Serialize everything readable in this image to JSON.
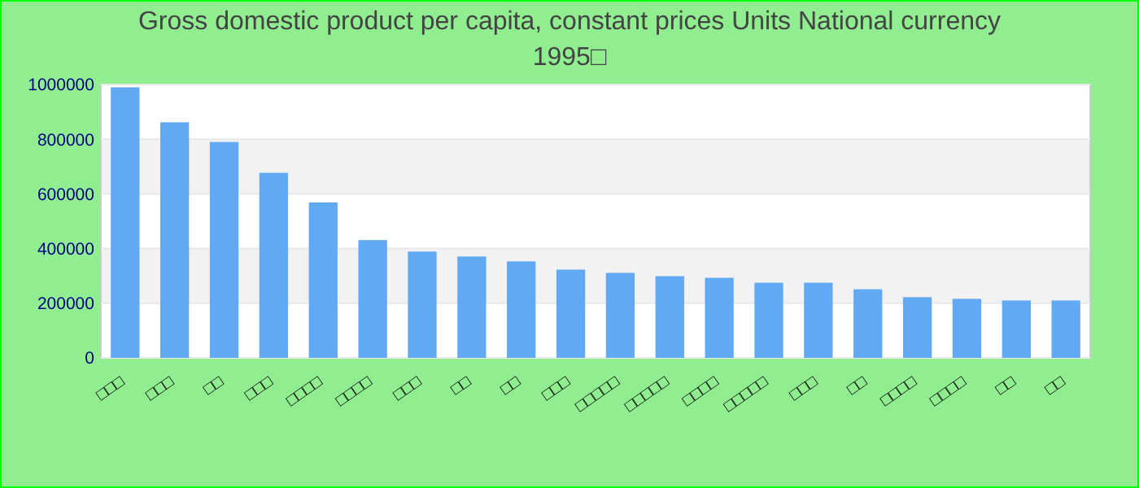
{
  "chart_data": {
    "type": "bar",
    "title": "Gross domestic product per capita, constant prices Units National currency 1995□",
    "categories": [
      "□□□",
      "□□□",
      "□□",
      "□□□",
      "□□□□",
      "□□□□",
      "□□□",
      "□□",
      "□□",
      "□□□",
      "□□□□□",
      "□□□□□",
      "□□□□",
      "□□□□□",
      "□□□",
      "□□",
      "□□□□",
      "□□□□",
      "□□",
      "□□"
    ],
    "values": [
      990000,
      862000,
      790000,
      677000,
      569000,
      431000,
      389000,
      371000,
      353000,
      323000,
      311000,
      299000,
      293000,
      275000,
      275000,
      251000,
      222000,
      216000,
      210000,
      210000
    ],
    "color": "#62a9f4",
    "ylim": [
      0,
      1000000
    ],
    "yticks": [
      0,
      200000,
      400000,
      600000,
      800000,
      1000000
    ],
    "grid": "y"
  }
}
